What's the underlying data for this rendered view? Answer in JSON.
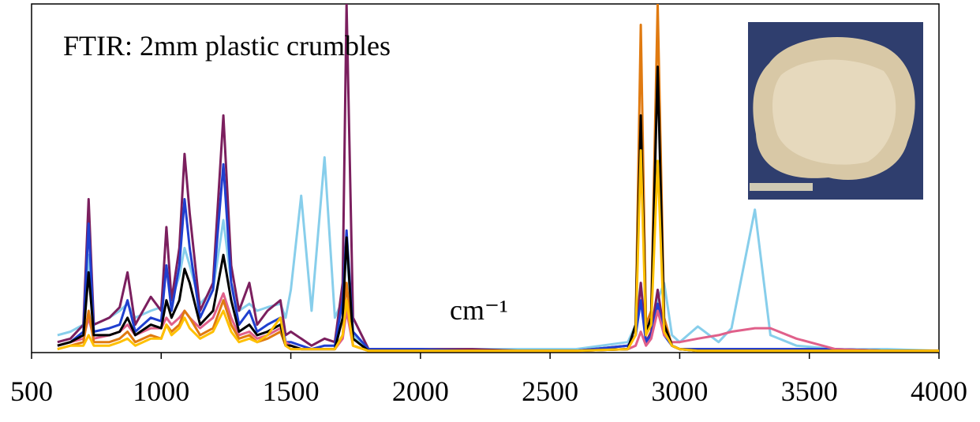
{
  "chart_data": {
    "type": "line",
    "title": "FTIR: 2mm plastic crumbles",
    "x_label": "cm⁻¹",
    "x": [
      600,
      650,
      700,
      720,
      740,
      800,
      840,
      870,
      900,
      960,
      1000,
      1020,
      1040,
      1070,
      1090,
      1110,
      1150,
      1200,
      1240,
      1270,
      1300,
      1340,
      1370,
      1410,
      1460,
      1480,
      1500,
      1540,
      1580,
      1630,
      1670,
      1700,
      1715,
      1740,
      1800,
      1900,
      2000,
      2200,
      2400,
      2600,
      2800,
      2830,
      2850,
      2870,
      2890,
      2915,
      2940,
      2970,
      3000,
      3070,
      3150,
      3200,
      3290,
      3350,
      3450,
      3600,
      3800,
      4000
    ],
    "series": [
      {
        "color": "#87ceeb",
        "values": [
          0.05,
          0.06,
          0.08,
          0.28,
          0.08,
          0.1,
          0.12,
          0.14,
          0.1,
          0.12,
          0.13,
          0.25,
          0.15,
          0.22,
          0.3,
          0.25,
          0.14,
          0.18,
          0.38,
          0.2,
          0.12,
          0.14,
          0.12,
          0.13,
          0.14,
          0.1,
          0.18,
          0.45,
          0.12,
          0.56,
          0.1,
          0.15,
          0.3,
          0.05,
          0.01,
          0.01,
          0.01,
          0.01,
          0.01,
          0.01,
          0.03,
          0.08,
          0.2,
          0.06,
          0.08,
          0.15,
          0.2,
          0.05,
          0.03,
          0.075,
          0.03,
          0.07,
          0.41,
          0.05,
          0.02,
          0.01,
          0.01,
          0.005
        ]
      },
      {
        "color": "#7b1f5e",
        "values": [
          0.03,
          0.04,
          0.08,
          0.44,
          0.08,
          0.1,
          0.13,
          0.23,
          0.08,
          0.16,
          0.12,
          0.36,
          0.15,
          0.3,
          0.57,
          0.4,
          0.12,
          0.2,
          0.68,
          0.25,
          0.12,
          0.2,
          0.08,
          0.12,
          0.15,
          0.05,
          0.06,
          0.04,
          0.02,
          0.04,
          0.03,
          0.2,
          1.0,
          0.1,
          0.01,
          0.01,
          0.01,
          0.01,
          0.005,
          0.005,
          0.02,
          0.05,
          0.2,
          0.03,
          0.06,
          0.18,
          0.06,
          0.02,
          0.01,
          0.01,
          0.01,
          0.01,
          0.01,
          0.01,
          0.01,
          0.01,
          0.005,
          0.005
        ]
      },
      {
        "color": "#1f3fcf",
        "values": [
          0.02,
          0.03,
          0.06,
          0.37,
          0.06,
          0.07,
          0.08,
          0.15,
          0.06,
          0.1,
          0.09,
          0.25,
          0.12,
          0.25,
          0.44,
          0.3,
          0.1,
          0.18,
          0.54,
          0.2,
          0.08,
          0.12,
          0.06,
          0.08,
          0.1,
          0.03,
          0.03,
          0.02,
          0.01,
          0.02,
          0.02,
          0.15,
          0.35,
          0.06,
          0.01,
          0.01,
          0.01,
          0.005,
          0.005,
          0.005,
          0.02,
          0.05,
          0.15,
          0.03,
          0.05,
          0.14,
          0.05,
          0.02,
          0.01,
          0.01,
          0.01,
          0.01,
          0.01,
          0.01,
          0.01,
          0.01,
          0.005,
          0.005
        ]
      },
      {
        "color": "#e0608a",
        "values": [
          0.02,
          0.03,
          0.04,
          0.1,
          0.04,
          0.05,
          0.06,
          0.08,
          0.05,
          0.07,
          0.07,
          0.1,
          0.08,
          0.1,
          0.12,
          0.1,
          0.07,
          0.1,
          0.17,
          0.1,
          0.05,
          0.06,
          0.04,
          0.05,
          0.07,
          0.03,
          0.02,
          0.01,
          0.01,
          0.01,
          0.01,
          0.04,
          0.12,
          0.02,
          0.005,
          0.005,
          0.005,
          0.005,
          0.005,
          0.005,
          0.01,
          0.02,
          0.06,
          0.02,
          0.04,
          0.12,
          0.05,
          0.03,
          0.03,
          0.04,
          0.05,
          0.06,
          0.07,
          0.07,
          0.04,
          0.01,
          0.005,
          0.005
        ]
      },
      {
        "color": "#e07a10",
        "values": [
          0.01,
          0.02,
          0.03,
          0.12,
          0.03,
          0.03,
          0.04,
          0.06,
          0.03,
          0.05,
          0.04,
          0.08,
          0.06,
          0.08,
          0.12,
          0.1,
          0.05,
          0.07,
          0.15,
          0.08,
          0.04,
          0.05,
          0.03,
          0.04,
          0.06,
          0.02,
          0.01,
          0.01,
          0.01,
          0.01,
          0.01,
          0.05,
          0.2,
          0.02,
          0.005,
          0.005,
          0.005,
          0.005,
          0.005,
          0.005,
          0.01,
          0.08,
          0.94,
          0.08,
          0.12,
          1.0,
          0.1,
          0.02,
          0.01,
          0.005,
          0.005,
          0.005,
          0.005,
          0.005,
          0.005,
          0.005,
          0.005,
          0.005
        ]
      },
      {
        "color": "#000000",
        "values": [
          0.02,
          0.03,
          0.05,
          0.23,
          0.05,
          0.05,
          0.06,
          0.1,
          0.05,
          0.08,
          0.07,
          0.15,
          0.1,
          0.15,
          0.24,
          0.2,
          0.08,
          0.12,
          0.28,
          0.15,
          0.06,
          0.08,
          0.05,
          0.06,
          0.08,
          0.02,
          0.02,
          0.01,
          0.01,
          0.01,
          0.01,
          0.1,
          0.33,
          0.04,
          0.005,
          0.005,
          0.005,
          0.005,
          0.005,
          0.005,
          0.01,
          0.08,
          0.68,
          0.06,
          0.1,
          0.82,
          0.08,
          0.02,
          0.01,
          0.005,
          0.005,
          0.005,
          0.005,
          0.005,
          0.005,
          0.005,
          0.005,
          0.005
        ]
      },
      {
        "color": "#ffc000",
        "values": [
          0.01,
          0.02,
          0.02,
          0.05,
          0.02,
          0.02,
          0.03,
          0.04,
          0.02,
          0.04,
          0.04,
          0.08,
          0.05,
          0.07,
          0.1,
          0.07,
          0.04,
          0.06,
          0.12,
          0.06,
          0.03,
          0.04,
          0.03,
          0.05,
          0.1,
          0.02,
          0.01,
          0.01,
          0.01,
          0.01,
          0.01,
          0.05,
          0.15,
          0.02,
          0.005,
          0.005,
          0.005,
          0.005,
          0.005,
          0.005,
          0.01,
          0.05,
          0.58,
          0.05,
          0.08,
          0.55,
          0.06,
          0.02,
          0.01,
          0.005,
          0.005,
          0.005,
          0.005,
          0.005,
          0.005,
          0.005,
          0.005,
          0.005
        ]
      }
    ],
    "xlim": [
      500,
      4000
    ],
    "xticks": [
      500,
      1000,
      1500,
      2000,
      2500,
      3000,
      3500,
      4000
    ],
    "ylim": [
      0,
      1
    ]
  }
}
